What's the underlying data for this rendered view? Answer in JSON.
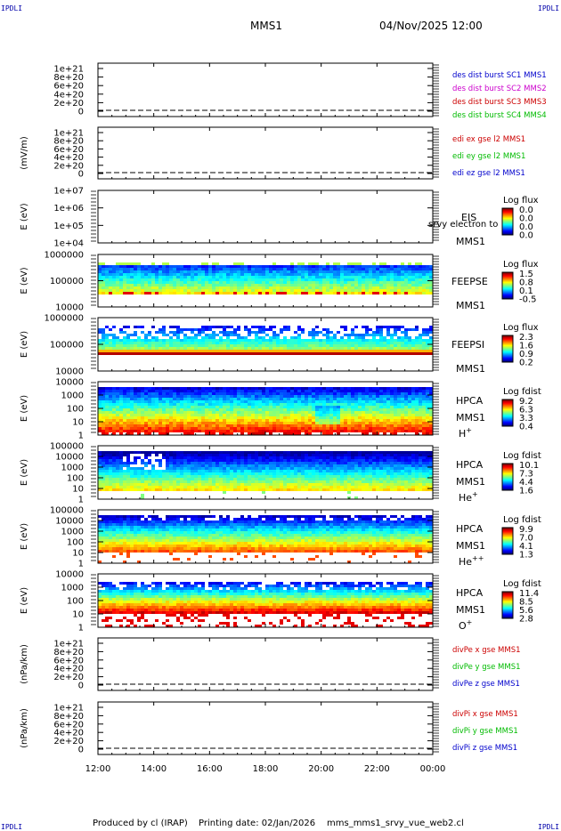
{
  "page": {
    "corner_label": "IPDLI",
    "spacecraft_title": "MMS1",
    "date_title": "04/Nov/2025 12:00",
    "footer_producer": "Produced by cl (IRAP)",
    "footer_date": "Printing date: 02/Jan/2026",
    "footer_file": "mms_mms1_srvy_vue_web2.cl"
  },
  "chart_data": {
    "type": "multi-panel time series / spectrogram",
    "x_ticks": [
      "12:00",
      "14:00",
      "16:00",
      "18:00",
      "20:00",
      "22:00",
      "00:00"
    ],
    "x_range_hours": [
      12,
      24
    ],
    "panels": [
      {
        "id": "des-dist",
        "kind": "line",
        "ylabel": "",
        "yticks": [
          "1e+21",
          "8e+20",
          "6e+20",
          "4e+20",
          "2e+20",
          "0"
        ],
        "legend": [
          {
            "text": "des dist burst SC1 MMS1",
            "color": "#0000cc"
          },
          {
            "text": "des dist burst SC2 MMS2",
            "color": "#cc00cc"
          },
          {
            "text": "des dist burst SC3 MMS3",
            "color": "#cc0000"
          },
          {
            "text": "des dist burst SC4 MMS4",
            "color": "#00bb00"
          }
        ]
      },
      {
        "id": "edi-e",
        "kind": "line",
        "ylabel": "(mV/m)",
        "yticks": [
          "1e+21",
          "8e+20",
          "6e+20",
          "4e+20",
          "2e+20",
          "0"
        ],
        "legend": [
          {
            "text": "edi ex gse l2 MMS1",
            "color": "#cc0000"
          },
          {
            "text": "edi ey gse l2 MMS1",
            "color": "#00bb00"
          },
          {
            "text": "edi ez gse l2 MMS1",
            "color": "#0000cc"
          }
        ]
      },
      {
        "id": "eis",
        "kind": "spectrogram",
        "ylabel": "E (eV)",
        "yticks": [
          "1e+07",
          "1e+06",
          "1e+05",
          "1e+04"
        ],
        "labels": [
          "EIS",
          "MMS1"
        ],
        "overlay": "srvy electron to",
        "colorbar": {
          "title": "Log flux",
          "ticks": [
            "0.0",
            "0.0",
            "0.0",
            "0.0"
          ]
        }
      },
      {
        "id": "feeps-e",
        "kind": "spectrogram",
        "ylabel": "E (eV)",
        "yticks": [
          "1000000",
          "100000",
          "10000"
        ],
        "labels": [
          "FEEPSE",
          "MMS1"
        ],
        "colorbar": {
          "title": "Log flux",
          "ticks": [
            "1.5",
            "0.8",
            "0.1",
            "-0.5"
          ]
        }
      },
      {
        "id": "feeps-i",
        "kind": "spectrogram",
        "ylabel": "E (eV)",
        "yticks": [
          "1000000",
          "100000",
          "10000"
        ],
        "labels": [
          "FEEPSI",
          "MMS1"
        ],
        "colorbar": {
          "title": "Log flux",
          "ticks": [
            "2.3",
            "1.6",
            "0.9",
            "0.2"
          ]
        }
      },
      {
        "id": "hpca-h",
        "kind": "spectrogram",
        "ylabel": "E (eV)",
        "yticks": [
          "10000",
          "1000",
          "100",
          "10",
          "1"
        ],
        "labels": [
          "HPCA",
          "MMS1"
        ],
        "species": "H",
        "species_sup": "+",
        "colorbar": {
          "title": "Log fdist",
          "ticks": [
            "9.2",
            "6.3",
            "3.3",
            "0.4"
          ]
        }
      },
      {
        "id": "hpca-he",
        "kind": "spectrogram",
        "ylabel": "E (eV)",
        "yticks": [
          "100000",
          "10000",
          "1000",
          "100",
          "10",
          "1"
        ],
        "labels": [
          "HPCA",
          "MMS1"
        ],
        "species": "He",
        "species_sup": "+",
        "colorbar": {
          "title": "Log fdist",
          "ticks": [
            "10.1",
            "7.3",
            "4.4",
            "1.6"
          ]
        }
      },
      {
        "id": "hpca-he2",
        "kind": "spectrogram",
        "ylabel": "E (eV)",
        "yticks": [
          "100000",
          "10000",
          "1000",
          "100",
          "10",
          "1"
        ],
        "labels": [
          "HPCA",
          "MMS1"
        ],
        "species": "He",
        "species_sup": "++",
        "colorbar": {
          "title": "Log fdist",
          "ticks": [
            "9.9",
            "7.0",
            "4.1",
            "1.3"
          ]
        }
      },
      {
        "id": "hpca-o",
        "kind": "spectrogram",
        "ylabel": "E (eV)",
        "yticks": [
          "10000",
          "1000",
          "100",
          "10",
          "1"
        ],
        "labels": [
          "HPCA",
          "MMS1"
        ],
        "species": "O",
        "species_sup": "+",
        "colorbar": {
          "title": "Log fdist",
          "ticks": [
            "11.4",
            "8.5",
            "5.6",
            "2.8"
          ]
        }
      },
      {
        "id": "divpe",
        "kind": "line",
        "ylabel": "(nPa/km)",
        "yticks": [
          "1e+21",
          "8e+20",
          "6e+20",
          "4e+20",
          "2e+20",
          "0"
        ],
        "legend": [
          {
            "text": "divPe x gse MMS1",
            "color": "#cc0000"
          },
          {
            "text": "divPe y gse MMS1",
            "color": "#00bb00"
          },
          {
            "text": "divPe z gse MMS1",
            "color": "#0000cc"
          }
        ]
      },
      {
        "id": "divpi",
        "kind": "line",
        "ylabel": "(nPa/km)",
        "yticks": [
          "1e+21",
          "8e+20",
          "6e+20",
          "4e+20",
          "2e+20",
          "0"
        ],
        "legend": [
          {
            "text": "divPi x gse MMS1",
            "color": "#cc0000"
          },
          {
            "text": "divPi y gse MMS1",
            "color": "#00bb00"
          },
          {
            "text": "divPi z gse MMS1",
            "color": "#0000cc"
          }
        ]
      }
    ]
  }
}
